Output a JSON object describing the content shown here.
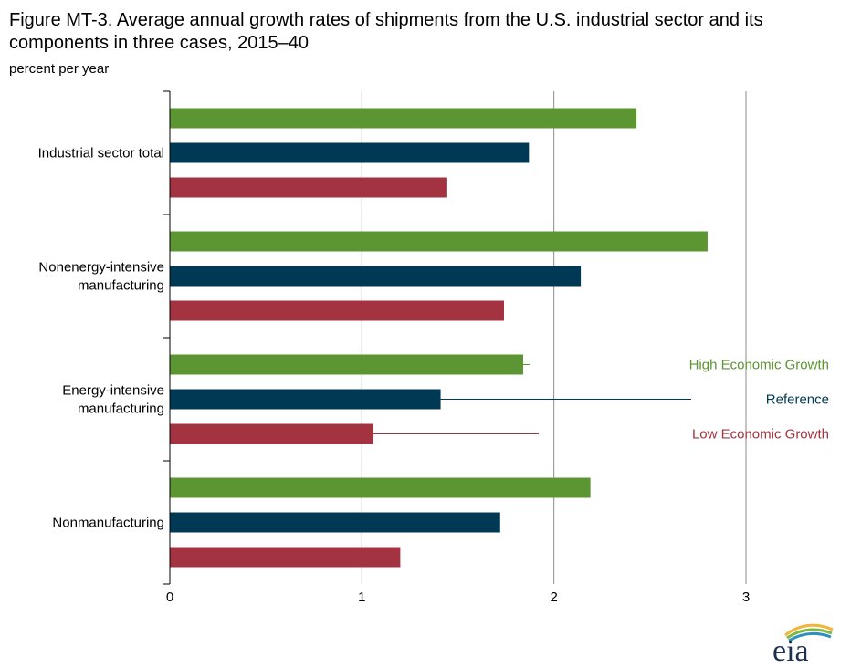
{
  "chart_data": {
    "type": "bar",
    "orientation": "horizontal",
    "title": "Figure MT-3. Average annual growth rates of shipments from the U.S. industrial sector and its components in three cases, 2015–40",
    "units": "percent per year",
    "categories": [
      "Industrial sector total",
      "Nonenergy-intensive manufacturing",
      "Energy-intensive manufacturing",
      "Nonmanufacturing"
    ],
    "category_lines": [
      [
        "Industrial sector total"
      ],
      [
        "Nonenergy-intensive",
        "manufacturing"
      ],
      [
        "Energy-intensive",
        "manufacturing"
      ],
      [
        "Nonmanufacturing"
      ]
    ],
    "series": [
      {
        "name": "High Economic Growth",
        "color": "#5b9632",
        "values": [
          2.43,
          2.8,
          1.84,
          2.19
        ]
      },
      {
        "name": "Reference",
        "color": "#003953",
        "values": [
          1.87,
          2.14,
          1.41,
          1.72
        ]
      },
      {
        "name": "Low Economic Growth",
        "color": "#a33340",
        "values": [
          1.44,
          1.74,
          1.06,
          1.2
        ]
      }
    ],
    "xlim": [
      0,
      3
    ],
    "xticks": [
      "0",
      "1",
      "2",
      "3"
    ],
    "grid": "vertical",
    "legend": "right, labels inline beside the Energy-intensive manufacturing bars"
  },
  "logo": {
    "text": "eia"
  }
}
